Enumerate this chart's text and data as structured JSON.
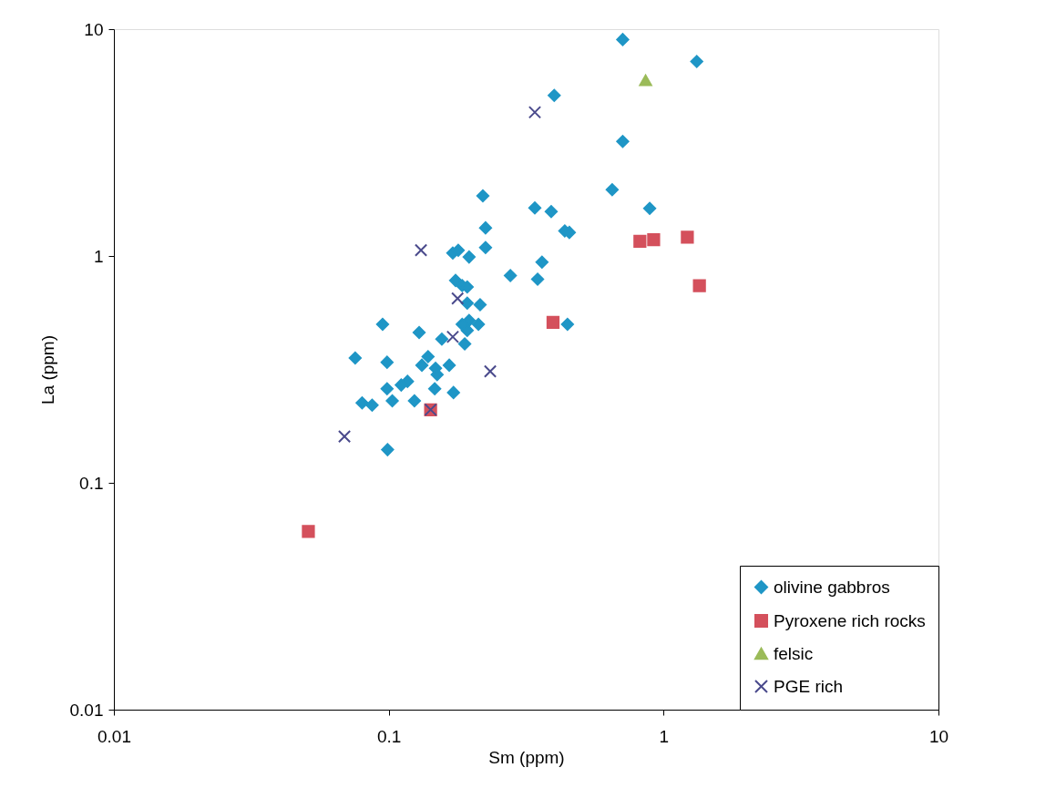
{
  "chart_data": {
    "type": "scatter",
    "xlabel": "Sm (ppm)",
    "ylabel": "La (ppm)",
    "log": "xy",
    "grid": false,
    "legend": "bottom right",
    "xlim": [
      0.01,
      10
    ],
    "ylim": [
      0.01,
      10
    ],
    "xticks": [
      0.01,
      0.1,
      1,
      10
    ],
    "yticks": [
      0.01,
      0.1,
      1,
      10
    ],
    "series": [
      {
        "name": "olivine gabbros",
        "color": "#1f96c6",
        "marker": "diamond",
        "x": [
          0.22,
          0.34,
          0.39,
          0.225,
          0.437,
          0.454,
          0.225,
          0.171,
          0.179,
          0.196,
          0.361,
          0.277,
          0.348,
          0.175,
          0.185,
          0.193,
          0.215,
          0.193,
          0.095,
          0.196,
          0.212,
          0.193,
          0.185,
          0.447,
          0.129,
          0.156,
          0.189,
          0.0755,
          0.0986,
          0.139,
          0.132,
          0.148,
          0.166,
          0.15,
          0.117,
          0.111,
          0.0986,
          0.147,
          0.172,
          0.103,
          0.124,
          0.08,
          0.087,
          0.099,
          0.71,
          1.32,
          0.4,
          0.71,
          0.65,
          0.89
        ],
        "values": [
          1.84,
          1.63,
          1.57,
          1.33,
          1.29,
          1.27,
          1.09,
          1.03,
          1.06,
          0.99,
          0.94,
          0.82,
          0.79,
          0.78,
          0.74,
          0.73,
          0.61,
          0.62,
          0.5,
          0.52,
          0.5,
          0.47,
          0.5,
          0.5,
          0.46,
          0.43,
          0.41,
          0.355,
          0.34,
          0.36,
          0.33,
          0.32,
          0.33,
          0.3,
          0.28,
          0.27,
          0.26,
          0.26,
          0.25,
          0.23,
          0.23,
          0.225,
          0.22,
          0.14,
          9.0,
          7.2,
          5.1,
          3.2,
          1.96,
          1.62
        ]
      },
      {
        "name": "Pyroxene rich rocks",
        "color": "#d4505c",
        "marker": "square",
        "x": [
          0.051,
          0.142,
          0.396,
          0.82,
          0.92,
          1.22,
          1.35
        ],
        "values": [
          0.061,
          0.21,
          0.51,
          1.16,
          1.18,
          1.21,
          0.74
        ]
      },
      {
        "name": "felsic",
        "color": "#9bbb59",
        "marker": "triangle",
        "x": [
          0.86
        ],
        "values": [
          5.95
        ]
      },
      {
        "name": "PGE rich",
        "color": "#4a4a8c",
        "marker": "cross",
        "x": [
          0.34,
          0.131,
          0.178,
          0.171,
          0.234,
          0.069,
          0.142
        ],
        "values": [
          4.3,
          1.06,
          0.65,
          0.44,
          0.31,
          0.16,
          0.21
        ]
      }
    ]
  }
}
